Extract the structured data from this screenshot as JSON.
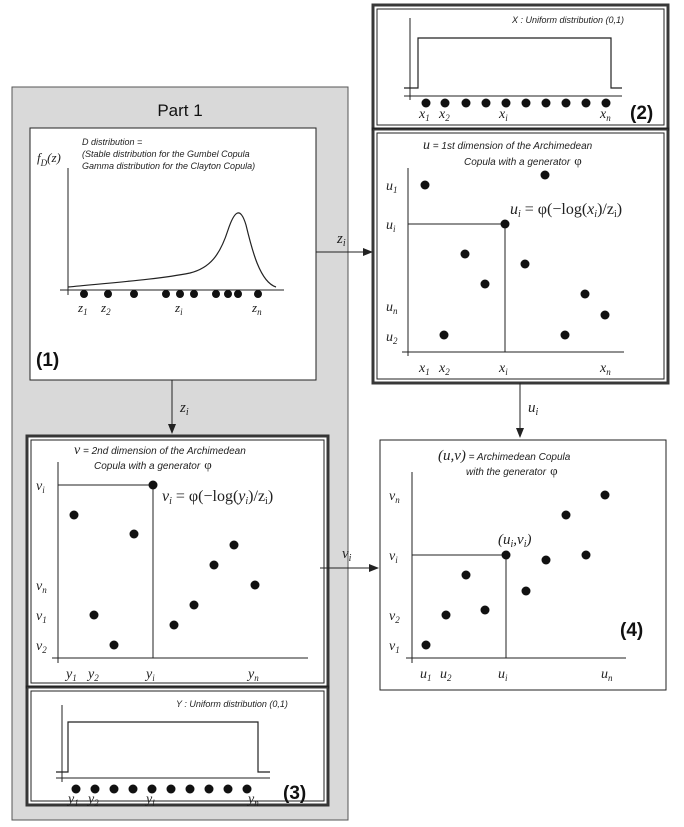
{
  "part1": {
    "title": "Part 1"
  },
  "panel1": {
    "caption_line1": "D distribution =",
    "caption_line2": "(Stable distribution for the Gumbel Copula",
    "caption_line3": "Gamma distribution for the Clayton Copula)",
    "ylabel": "f",
    "ylabel_sub": "D",
    "ylabel_arg": "(z)",
    "ticks": [
      {
        "base": "z",
        "sub": "1"
      },
      {
        "base": "z",
        "sub": "2"
      },
      {
        "base": "z",
        "sub": "i"
      },
      {
        "base": "z",
        "sub": "n"
      }
    ],
    "tag": "(1)"
  },
  "panel2": {
    "caption": "X : Uniform distribution (0,1)",
    "ticks": [
      {
        "base": "x",
        "sub": "1"
      },
      {
        "base": "x",
        "sub": "2"
      },
      {
        "base": "x",
        "sub": "i"
      },
      {
        "base": "x",
        "sub": "n"
      }
    ],
    "tag": "(2)"
  },
  "panel_u": {
    "caption_var": "u",
    "caption_line1": " = 1st dimension of the Archimedean",
    "caption_line2": "Copula with a generator",
    "phi": "φ",
    "formula_u": "u",
    "formula_sub": "i",
    "formula_eq": " = φ(−log(",
    "formula_x": "x",
    "formula_x_sub": "i",
    "formula_end": ")/z",
    "formula_end_sub": "i",
    "formula_close": ")",
    "yticks": [
      {
        "base": "u",
        "sub": "1"
      },
      {
        "base": "u",
        "sub": "i"
      },
      {
        "base": "u",
        "sub": "n"
      },
      {
        "base": "u",
        "sub": "2"
      }
    ],
    "xticks": [
      {
        "base": "x",
        "sub": "1"
      },
      {
        "base": "x",
        "sub": "2"
      },
      {
        "base": "x",
        "sub": "i"
      },
      {
        "base": "x",
        "sub": "n"
      }
    ]
  },
  "panel3": {
    "caption_var": "v",
    "caption_line1": " = 2nd dimension of the Archimedean",
    "caption_line2": "Copula with a generator",
    "phi": "φ",
    "formula_v": "v",
    "formula_sub": "i",
    "formula_eq": " = φ(−log(",
    "formula_y": "y",
    "formula_y_sub": "i",
    "formula_end": ")/z",
    "formula_end_sub": "i",
    "formula_close": ")",
    "yticks": [
      {
        "base": "v",
        "sub": "i"
      },
      {
        "base": "v",
        "sub": "n"
      },
      {
        "base": "v",
        "sub": "1"
      },
      {
        "base": "v",
        "sub": "2"
      }
    ],
    "xticks": [
      {
        "base": "y",
        "sub": "1"
      },
      {
        "base": "y",
        "sub": "2"
      },
      {
        "base": "y",
        "sub": "i"
      },
      {
        "base": "y",
        "sub": "n"
      }
    ]
  },
  "panel_y": {
    "caption": "Y : Uniform distribution (0,1)",
    "ticks": [
      {
        "base": "y",
        "sub": "1"
      },
      {
        "base": "y",
        "sub": "2"
      },
      {
        "base": "y",
        "sub": "i"
      },
      {
        "base": "y",
        "sub": "n"
      }
    ],
    "tag": "(3)"
  },
  "panel4": {
    "caption_pair": "(u,v)",
    "caption_line1": " = Archimedean Copula",
    "caption_line2": "with the generator",
    "phi": "φ",
    "point_label": "(u",
    "point_label_sub1": "i",
    "point_label_mid": ",v",
    "point_label_sub2": "i",
    "point_label_close": ")",
    "yticks": [
      {
        "base": "v",
        "sub": "n"
      },
      {
        "base": "v",
        "sub": "i"
      },
      {
        "base": "v",
        "sub": "2"
      },
      {
        "base": "v",
        "sub": "1"
      }
    ],
    "xticks": [
      {
        "base": "u",
        "sub": "1"
      },
      {
        "base": "u",
        "sub": "2"
      },
      {
        "base": "u",
        "sub": "i"
      },
      {
        "base": "u",
        "sub": "n"
      }
    ],
    "tag": "(4)"
  },
  "arrows": {
    "z_label": "z",
    "z_sub": "i",
    "z_label2": "z",
    "z_sub2": "i",
    "u_label": "u",
    "u_sub": "i",
    "v_label": "v",
    "v_sub": "i"
  }
}
